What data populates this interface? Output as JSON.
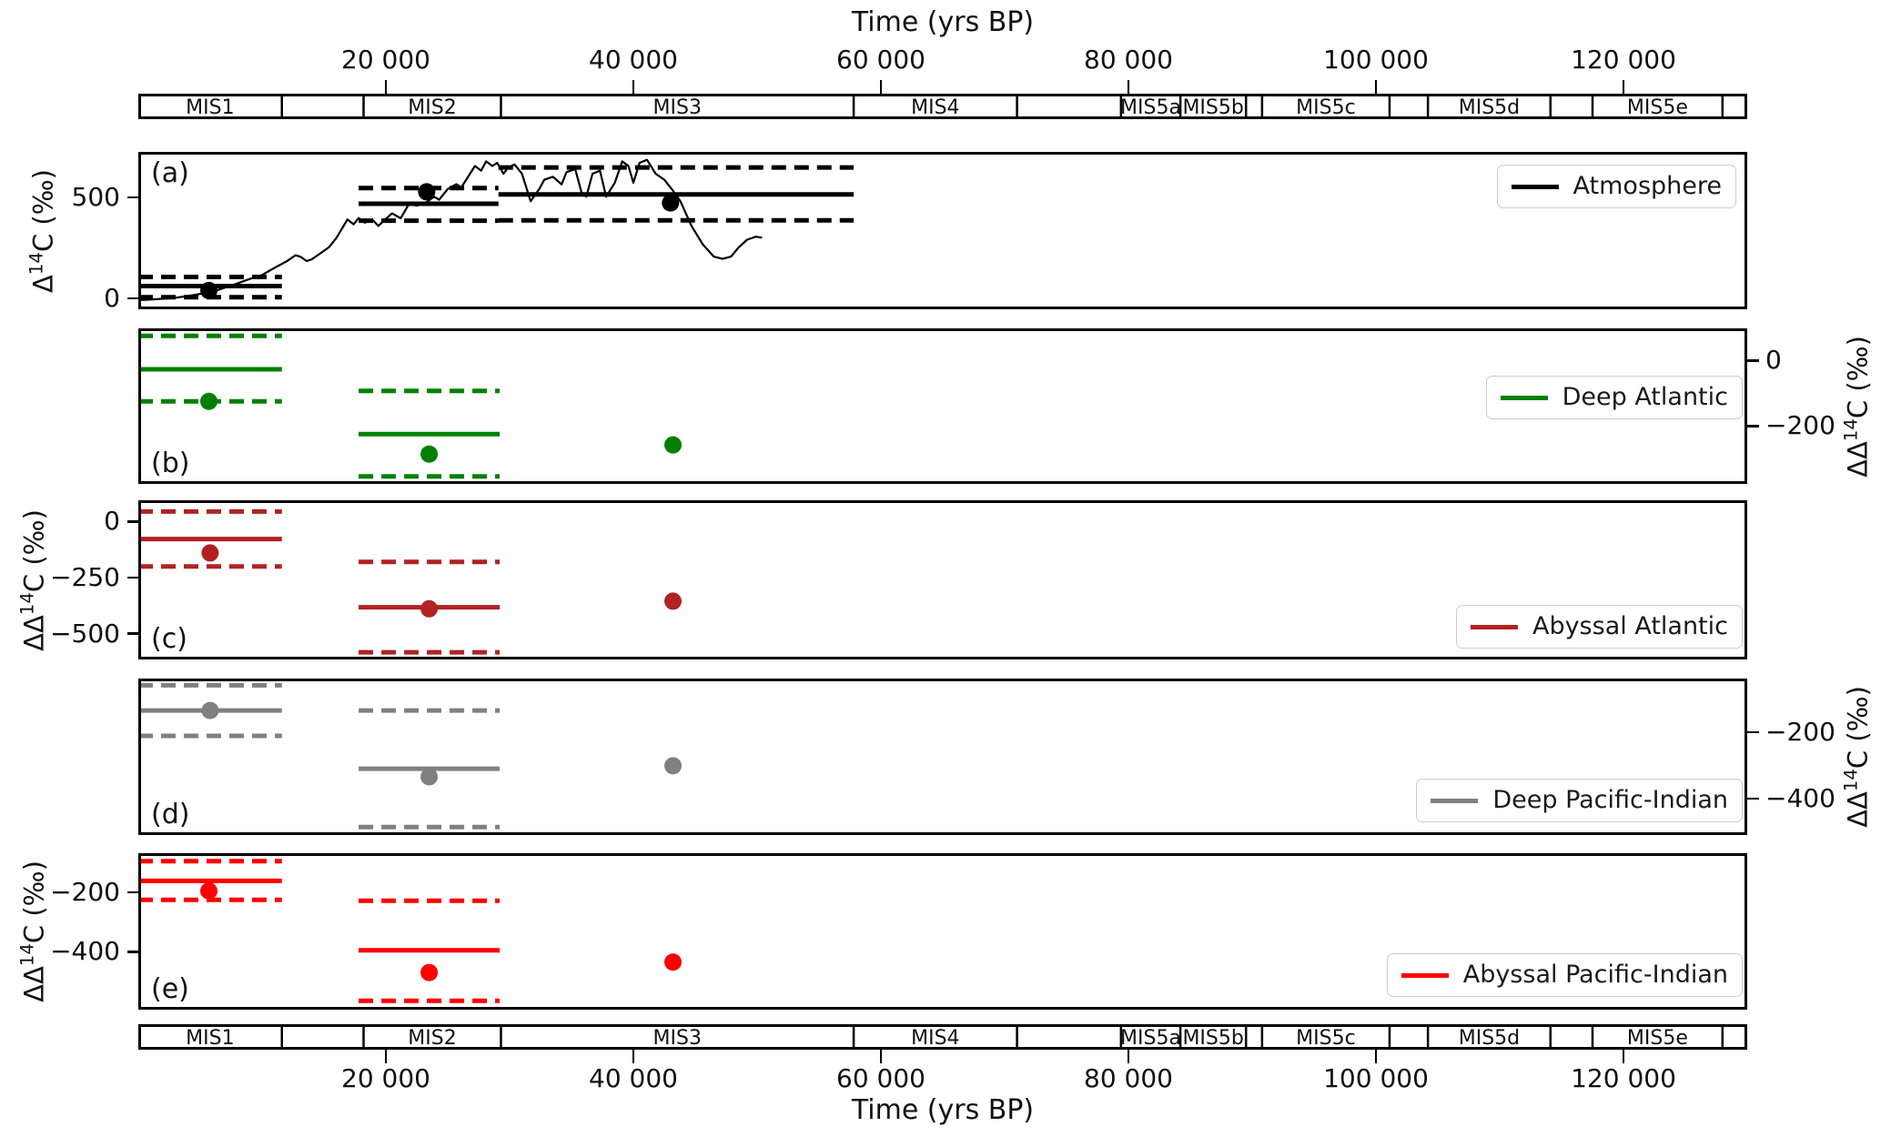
{
  "figure": {
    "background": "#ffffff"
  },
  "time_axis": {
    "title_top": "Time (yrs BP)",
    "title_bottom": "Time (yrs BP)",
    "xlim": [
      0,
      130000
    ],
    "ticks": [
      {
        "value": 20000,
        "label": "20 000"
      },
      {
        "value": 40000,
        "label": "40 000"
      },
      {
        "value": 60000,
        "label": "60 000"
      },
      {
        "value": 80000,
        "label": "80 000"
      },
      {
        "value": 100000,
        "label": "100 000"
      },
      {
        "value": 120000,
        "label": "120 000"
      }
    ]
  },
  "mis_bar": {
    "segments": [
      {
        "label": "MIS1",
        "start": 0,
        "end": 11600
      },
      {
        "label": "",
        "start": 11600,
        "end": 18200
      },
      {
        "label": "MIS2",
        "start": 18200,
        "end": 29300
      },
      {
        "label": "MIS3",
        "start": 29300,
        "end": 57800
      },
      {
        "label": "MIS4",
        "start": 57800,
        "end": 71000
      },
      {
        "label": "",
        "start": 71000,
        "end": 79400
      },
      {
        "label": "MIS5a",
        "start": 79400,
        "end": 84200
      },
      {
        "label": "MIS5b",
        "start": 84200,
        "end": 89500
      },
      {
        "label": "",
        "start": 89500,
        "end": 90800
      },
      {
        "label": "MIS5c",
        "start": 90800,
        "end": 101100
      },
      {
        "label": "",
        "start": 101100,
        "end": 104200
      },
      {
        "label": "MIS5d",
        "start": 104200,
        "end": 114100
      },
      {
        "label": "",
        "start": 114100,
        "end": 117500
      },
      {
        "label": "MIS5e",
        "start": 117500,
        "end": 128000
      },
      {
        "label": "",
        "start": 128000,
        "end": 130000
      }
    ]
  },
  "chart_data": [
    {
      "panel": "a",
      "type": "line+scatter",
      "letter": "(a)",
      "legend": "Atmosphere",
      "color": "#000000",
      "side": "left",
      "ylabel_prefix": "Δ",
      "ylabel_sup": "14",
      "ylabel_suffix": "C (‰)",
      "ylim": [
        -55,
        725
      ],
      "yticks": [
        {
          "value": 500,
          "label": "500"
        },
        {
          "value": 0,
          "label": "0"
        }
      ],
      "segments": [
        {
          "t0": 0,
          "t1": 11600,
          "mean": 60,
          "upper": 105,
          "lower": 5
        },
        {
          "t0": 17800,
          "t1": 29100,
          "mean": 468,
          "upper": 546,
          "lower": 384
        },
        {
          "t0": 29100,
          "t1": 57800,
          "mean": 514,
          "upper": 648,
          "lower": 386
        }
      ],
      "dots": [
        [
          5700,
          38
        ],
        [
          23300,
          527
        ],
        [
          43000,
          472
        ]
      ],
      "curve": [
        [
          0,
          -10
        ],
        [
          1500,
          -5
        ],
        [
          3000,
          2
        ],
        [
          4500,
          16
        ],
        [
          6000,
          32
        ],
        [
          7500,
          62
        ],
        [
          9000,
          95
        ],
        [
          10000,
          115
        ],
        [
          11000,
          150
        ],
        [
          12000,
          183
        ],
        [
          12700,
          213
        ],
        [
          13100,
          205
        ],
        [
          13600,
          184
        ],
        [
          14000,
          192
        ],
        [
          14700,
          222
        ],
        [
          15400,
          252
        ],
        [
          16000,
          298
        ],
        [
          16600,
          360
        ],
        [
          16900,
          390
        ],
        [
          17400,
          366
        ],
        [
          17800,
          397
        ],
        [
          18300,
          374
        ],
        [
          18900,
          390
        ],
        [
          19400,
          358
        ],
        [
          19800,
          382
        ],
        [
          20500,
          420
        ],
        [
          21200,
          396
        ],
        [
          21900,
          470
        ],
        [
          22500,
          458
        ],
        [
          23200,
          472
        ],
        [
          23900,
          503
        ],
        [
          24300,
          488
        ],
        [
          25000,
          541
        ],
        [
          25700,
          565
        ],
        [
          26100,
          549
        ],
        [
          26800,
          617
        ],
        [
          27200,
          655
        ],
        [
          27700,
          632
        ],
        [
          28100,
          678
        ],
        [
          28600,
          655
        ],
        [
          29000,
          671
        ],
        [
          29500,
          617
        ],
        [
          29900,
          648
        ],
        [
          30400,
          663
        ],
        [
          31000,
          617
        ],
        [
          31700,
          480
        ],
        [
          32400,
          541
        ],
        [
          32800,
          587
        ],
        [
          33500,
          602
        ],
        [
          34200,
          564
        ],
        [
          34600,
          625
        ],
        [
          35300,
          640
        ],
        [
          35800,
          526
        ],
        [
          36200,
          503
        ],
        [
          36700,
          617
        ],
        [
          37300,
          632
        ],
        [
          37800,
          503
        ],
        [
          38500,
          572
        ],
        [
          39100,
          678
        ],
        [
          39600,
          655
        ],
        [
          40000,
          572
        ],
        [
          40500,
          671
        ],
        [
          41100,
          686
        ],
        [
          41800,
          617
        ],
        [
          42500,
          587
        ],
        [
          43200,
          533
        ],
        [
          43800,
          480
        ],
        [
          44700,
          358
        ],
        [
          45600,
          267
        ],
        [
          46500,
          206
        ],
        [
          47200,
          195
        ],
        [
          47900,
          206
        ],
        [
          48500,
          251
        ],
        [
          49200,
          290
        ],
        [
          49900,
          305
        ],
        [
          50400,
          300
        ]
      ]
    },
    {
      "panel": "b",
      "type": "line+scatter",
      "letter": "(b)",
      "legend": "Deep Atlantic",
      "color": "#008000",
      "side": "right",
      "ylabel_prefix": "ΔΔ",
      "ylabel_sup": "14",
      "ylabel_suffix": "C (‰)",
      "ylim": [
        -377,
        98
      ],
      "yticks": [
        {
          "value": 0,
          "label": "0"
        },
        {
          "value": -200,
          "label": "−200"
        }
      ],
      "segments": [
        {
          "t0": 0,
          "t1": 11600,
          "mean": -27,
          "upper": 75,
          "lower": -125
        },
        {
          "t0": 17800,
          "t1": 29200,
          "mean": -225,
          "upper": -93,
          "lower": -354
        }
      ],
      "dots": [
        [
          5700,
          -125
        ],
        [
          23500,
          -286
        ],
        [
          43200,
          -258
        ]
      ],
      "curve": []
    },
    {
      "panel": "c",
      "type": "line+scatter",
      "letter": "(c)",
      "legend": "Abyssal Atlantic",
      "color": "#B22222",
      "side": "left",
      "ylabel_prefix": "ΔΔ",
      "ylabel_sup": "14",
      "ylabel_suffix": "C (‰)",
      "ylim": [
        -615,
        95
      ],
      "yticks": [
        {
          "value": 0,
          "label": "0"
        },
        {
          "value": -250,
          "label": "−250"
        },
        {
          "value": -500,
          "label": "−500"
        }
      ],
      "segments": [
        {
          "t0": 0,
          "t1": 11600,
          "mean": -78,
          "upper": 45,
          "lower": -200
        },
        {
          "t0": 17800,
          "t1": 29200,
          "mean": -382,
          "upper": -180,
          "lower": -583
        }
      ],
      "dots": [
        [
          5800,
          -140
        ],
        [
          23500,
          -389
        ],
        [
          43200,
          -355
        ]
      ],
      "curve": []
    },
    {
      "panel": "d",
      "type": "line+scatter",
      "letter": "(d)",
      "legend": "Deep Pacific-Indian",
      "color": "#808080",
      "side": "right",
      "ylabel_prefix": "ΔΔ",
      "ylabel_sup": "14",
      "ylabel_suffix": "C (‰)",
      "ylim": [
        -509,
        -39
      ],
      "yticks": [
        {
          "value": -200,
          "label": "−200"
        },
        {
          "value": -400,
          "label": "−400"
        }
      ],
      "segments": [
        {
          "t0": 0,
          "t1": 11600,
          "mean": -135,
          "upper": -59,
          "lower": -211
        },
        {
          "t0": 17800,
          "t1": 29200,
          "mean": -310,
          "upper": -135,
          "lower": -485
        }
      ],
      "dots": [
        [
          5800,
          -135
        ],
        [
          23500,
          -334
        ],
        [
          43200,
          -301
        ]
      ],
      "curve": []
    },
    {
      "panel": "e",
      "type": "line+scatter",
      "letter": "(e)",
      "legend": "Abyssal Pacific-Indian",
      "color": "#FF0000",
      "side": "left",
      "ylabel_prefix": "ΔΔ",
      "ylabel_sup": "14",
      "ylabel_suffix": "C (‰)",
      "ylim": [
        -595,
        -68
      ],
      "yticks": [
        {
          "value": -200,
          "label": "−200"
        },
        {
          "value": -400,
          "label": "−400"
        }
      ],
      "segments": [
        {
          "t0": 0,
          "t1": 11600,
          "mean": -161,
          "upper": -95,
          "lower": -225
        },
        {
          "t0": 17800,
          "t1": 29200,
          "mean": -395,
          "upper": -228,
          "lower": -565
        }
      ],
      "dots": [
        [
          5700,
          -195
        ],
        [
          23500,
          -470
        ],
        [
          43200,
          -435
        ]
      ],
      "curve": []
    }
  ]
}
